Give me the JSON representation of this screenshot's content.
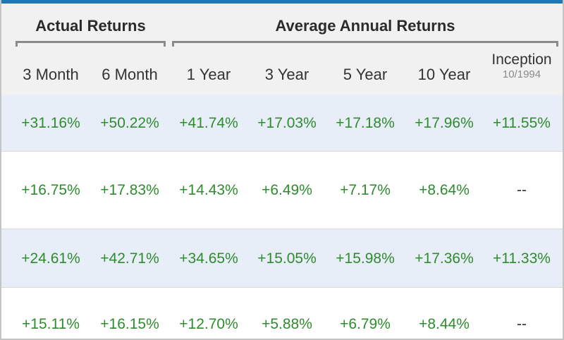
{
  "colors": {
    "top_bar": "#1f78b4",
    "header_bg": "#f1f1f1",
    "shaded_row": "#e8eef7",
    "positive_text": "#2e8b2e"
  },
  "groups": {
    "actual": "Actual Returns",
    "average": "Average Annual Returns"
  },
  "columns": {
    "m3": "3 Month",
    "m6": "6 Month",
    "y1": "1 Year",
    "y3": "3 Year",
    "y5": "5 Year",
    "y10": "10 Year",
    "inception": "Inception",
    "inception_date": "10/1994"
  },
  "rows": [
    [
      "+31.16%",
      "+50.22%",
      "+41.74%",
      "+17.03%",
      "+17.18%",
      "+17.96%",
      "+11.55%"
    ],
    [
      "+16.75%",
      "+17.83%",
      "+14.43%",
      "+6.49%",
      "+7.17%",
      "+8.64%",
      "--"
    ],
    [
      "+24.61%",
      "+42.71%",
      "+34.65%",
      "+15.05%",
      "+15.98%",
      "+17.36%",
      "+11.33%"
    ],
    [
      "+15.11%",
      "+16.15%",
      "+12.70%",
      "+5.88%",
      "+6.79%",
      "+8.44%",
      "--"
    ]
  ]
}
